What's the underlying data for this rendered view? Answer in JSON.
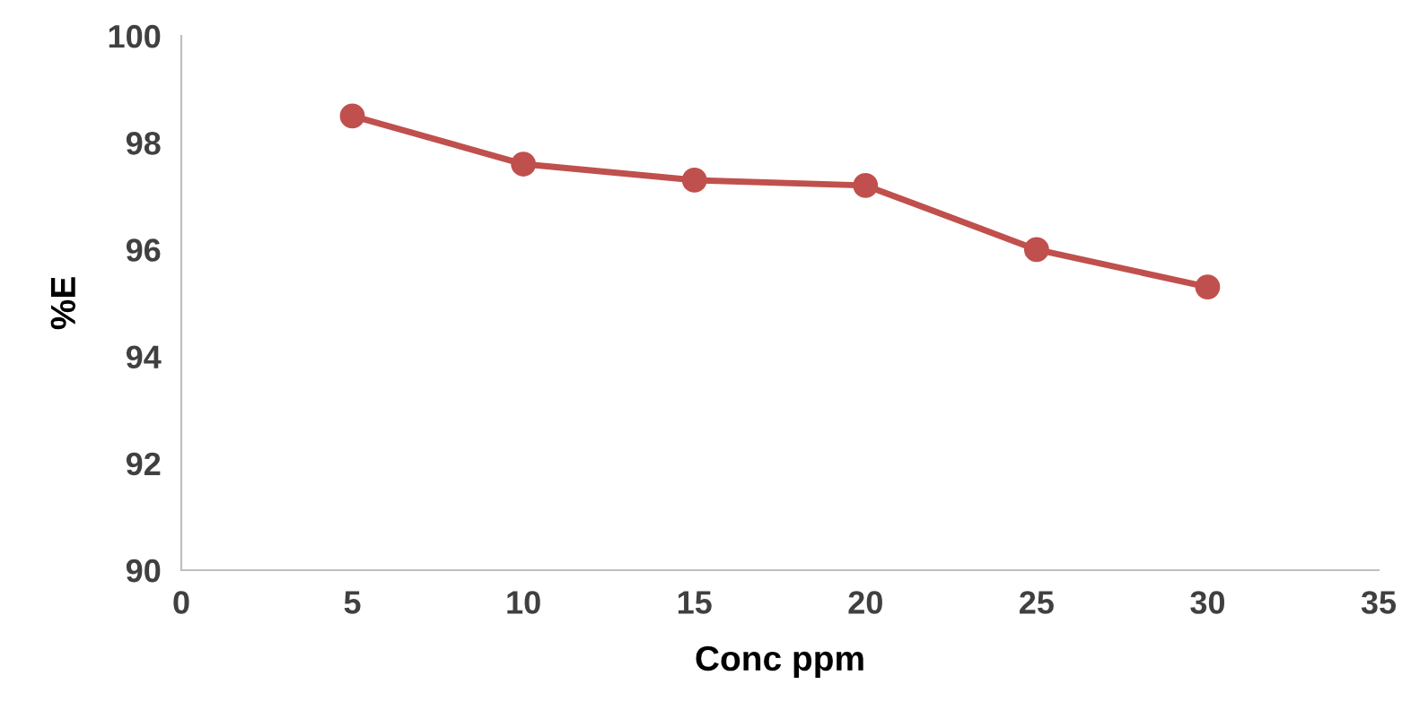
{
  "chart_data": {
    "type": "line",
    "xlabel": "Conc ppm",
    "ylabel": "%E",
    "x": [
      5,
      10,
      15,
      20,
      25,
      30
    ],
    "series": [
      {
        "color": "#c0504d",
        "values": [
          98.5,
          97.6,
          97.3,
          97.2,
          96.0,
          95.3
        ]
      }
    ],
    "xlim": [
      0,
      35
    ],
    "xticks": [
      0,
      5,
      10,
      15,
      20,
      25,
      30,
      35
    ],
    "ylim": [
      90,
      100
    ],
    "yticks": [
      90,
      92,
      94,
      96,
      98,
      100
    ],
    "grid": false,
    "legend": false,
    "marker": "circle",
    "line_style": "solid"
  }
}
